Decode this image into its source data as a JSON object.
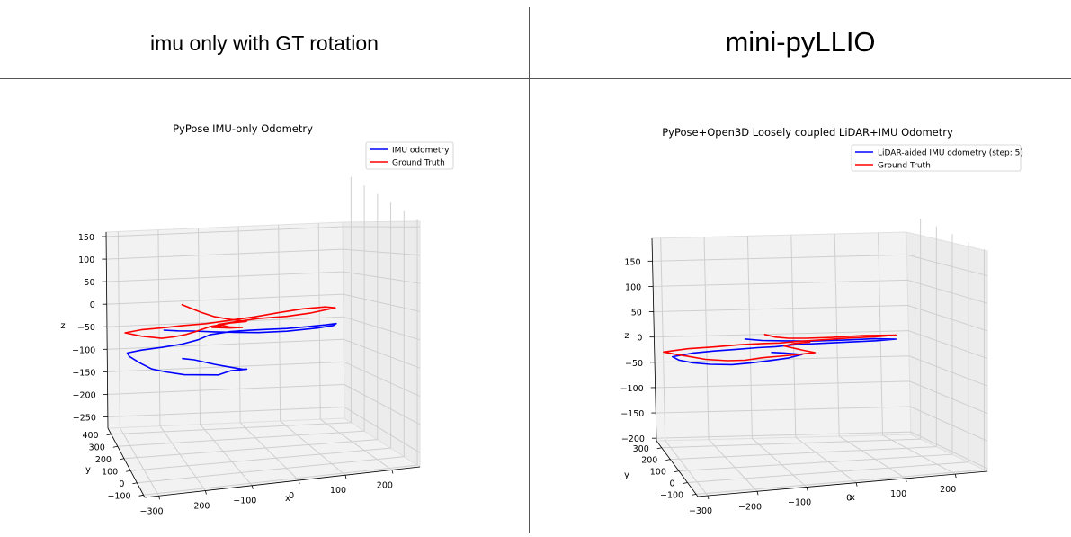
{
  "headers": {
    "left": "imu only with GT rotation",
    "right": "mini-pyLLIO"
  },
  "chart_data": [
    {
      "type": "line",
      "projection": "3d",
      "title": "PyPose IMU-only Odometry",
      "xlabel": "x",
      "ylabel": "y",
      "zlabel": "z",
      "x_ticks": [
        -300,
        -200,
        -100,
        0,
        100,
        200
      ],
      "y_ticks": [
        -100,
        0,
        100,
        200,
        300,
        400
      ],
      "z_ticks": [
        150,
        100,
        50,
        0,
        -50,
        -100,
        -150,
        -200,
        -250
      ],
      "xlim": [
        -330,
        260
      ],
      "ylim": [
        -120,
        450
      ],
      "zlim": [
        -275,
        160
      ],
      "legend_position": "top-right",
      "series": [
        {
          "name": "IMU odometry",
          "color": "#0000ff",
          "points": [
            [
              -195,
              420,
              -55
            ],
            [
              -160,
              420,
              -58
            ],
            [
              -120,
              420,
              -60
            ],
            [
              -70,
              420,
              -64
            ],
            [
              -20,
              420,
              -67
            ],
            [
              40,
              420,
              -70
            ],
            [
              110,
              420,
              -70
            ],
            [
              185,
              420,
              -66
            ],
            [
              225,
              420,
              -62
            ],
            [
              232,
              420,
              -58
            ],
            [
              205,
              420,
              -60
            ],
            [
              160,
              420,
              -62
            ],
            [
              110,
              420,
              -64
            ],
            [
              60,
              420,
              -64
            ],
            [
              20,
              420,
              -64
            ],
            [
              -30,
              420,
              -65
            ],
            [
              -80,
              420,
              -70
            ],
            [
              -110,
              420,
              -80
            ],
            [
              -150,
              420,
              -88
            ],
            [
              -200,
              420,
              -93
            ],
            [
              -250,
              420,
              -97
            ],
            [
              -285,
              420,
              -102
            ],
            [
              -280,
              420,
              -110
            ],
            [
              -255,
              420,
              -125
            ],
            [
              -225,
              420,
              -140
            ],
            [
              -190,
              420,
              -148
            ],
            [
              -145,
              420,
              -156
            ],
            [
              -100,
              420,
              -158
            ],
            [
              -60,
              420,
              -160
            ],
            [
              -30,
              420,
              -152
            ],
            [
              10,
              420,
              -150
            ],
            [
              0,
              420,
              -150
            ],
            [
              -40,
              420,
              -142
            ],
            [
              -70,
              420,
              -136
            ],
            [
              -95,
              420,
              -130
            ],
            [
              -120,
              420,
              -124
            ],
            [
              -150,
              420,
              -120
            ]
          ]
        },
        {
          "name": "Ground Truth",
          "color": "#ff0000",
          "points": [
            [
              -150,
              420,
              0
            ],
            [
              -130,
              420,
              -8
            ],
            [
              -100,
              420,
              -20
            ],
            [
              -70,
              420,
              -30
            ],
            [
              -30,
              420,
              -38
            ],
            [
              10,
              420,
              -44
            ],
            [
              -30,
              420,
              -46
            ],
            [
              -80,
              420,
              -52
            ],
            [
              -110,
              420,
              -60
            ],
            [
              -140,
              420,
              -67
            ],
            [
              -170,
              420,
              -71
            ],
            [
              -200,
              420,
              -73
            ],
            [
              -250,
              420,
              -66
            ],
            [
              -290,
              420,
              -57
            ],
            [
              -250,
              420,
              -52
            ],
            [
              -200,
              420,
              -50
            ],
            [
              -150,
              420,
              -47
            ],
            [
              -90,
              420,
              -45
            ],
            [
              -30,
              420,
              -40
            ],
            [
              30,
              420,
              -35
            ],
            [
              90,
              420,
              -28
            ],
            [
              150,
              420,
              -22
            ],
            [
              205,
              420,
              -20
            ],
            [
              230,
              420,
              -23
            ],
            [
              170,
              420,
              -32
            ],
            [
              110,
              420,
              -37
            ],
            [
              40,
              420,
              -39
            ],
            [
              -20,
              420,
              -44
            ],
            [
              -60,
              420,
              -48
            ],
            [
              -30,
              420,
              -55
            ],
            [
              0,
              420,
              -57
            ],
            [
              -30,
              420,
              -57
            ],
            [
              -75,
              420,
              -54
            ],
            [
              -50,
              420,
              -51
            ]
          ]
        }
      ]
    },
    {
      "type": "line",
      "projection": "3d",
      "title": "PyPose+Open3D Loosely coupled LiDAR+IMU Odometry",
      "xlabel": "x",
      "ylabel": "y",
      "zlabel": "z",
      "x_ticks": [
        -300,
        -200,
        -100,
        0,
        100,
        200
      ],
      "y_ticks": [
        -100,
        0,
        100,
        200,
        300
      ],
      "z_ticks": [
        150,
        100,
        50,
        0,
        -50,
        -100,
        -150,
        -200
      ],
      "xlim": [
        -320,
        265
      ],
      "ylim": [
        -120,
        360
      ],
      "zlim": [
        -205,
        195
      ],
      "legend_position": "top-right",
      "series": [
        {
          "name": "LiDAR-aided IMU odometry (step: 5)",
          "color": "#0000ff",
          "points": [
            [
              -120,
              330,
              -2
            ],
            [
              -80,
              330,
              -6
            ],
            [
              -30,
              330,
              -8
            ],
            [
              30,
              330,
              -10
            ],
            [
              100,
              330,
              -10
            ],
            [
              175,
              330,
              -9
            ],
            [
              225,
              330,
              -11
            ],
            [
              180,
              330,
              -13
            ],
            [
              120,
              330,
              -14
            ],
            [
              60,
              330,
              -15
            ],
            [
              0,
              330,
              -16
            ],
            [
              -50,
              330,
              -19
            ],
            [
              -90,
              330,
              -20
            ],
            [
              -140,
              330,
              -22
            ],
            [
              -190,
              330,
              -24
            ],
            [
              -240,
              330,
              -27
            ],
            [
              -285,
              330,
              -33
            ],
            [
              -270,
              330,
              -40
            ],
            [
              -240,
              330,
              -46
            ],
            [
              -200,
              330,
              -50
            ],
            [
              -150,
              330,
              -52
            ],
            [
              -110,
              330,
              -50
            ],
            [
              -60,
              330,
              -46
            ],
            [
              -20,
              330,
              -42
            ],
            [
              10,
              330,
              -36
            ],
            [
              -30,
              330,
              -32
            ],
            [
              -60,
              330,
              -30
            ]
          ]
        },
        {
          "name": "Ground Truth",
          "color": "#ff0000",
          "points": [
            [
              -75,
              330,
              6
            ],
            [
              -50,
              330,
              0
            ],
            [
              -20,
              330,
              -3
            ],
            [
              20,
              330,
              -4
            ],
            [
              80,
              330,
              -4
            ],
            [
              150,
              330,
              -2
            ],
            [
              225,
              330,
              -3
            ],
            [
              180,
              330,
              -5
            ],
            [
              120,
              330,
              -6
            ],
            [
              60,
              330,
              -8
            ],
            [
              0,
              330,
              -10
            ],
            [
              -40,
              330,
              -12
            ],
            [
              -80,
              330,
              -12
            ],
            [
              -130,
              330,
              -13
            ],
            [
              -190,
              330,
              -16
            ],
            [
              -250,
              330,
              -18
            ],
            [
              -305,
              330,
              -23
            ],
            [
              -280,
              330,
              -28
            ],
            [
              -250,
              330,
              -33
            ],
            [
              -210,
              330,
              -40
            ],
            [
              -160,
              330,
              -44
            ],
            [
              -120,
              330,
              -44
            ],
            [
              -80,
              330,
              -40
            ],
            [
              -40,
              330,
              -38
            ],
            [
              10,
              330,
              -35
            ],
            [
              40,
              330,
              -33
            ],
            [
              10,
              330,
              -27
            ],
            [
              -30,
              330,
              -18
            ],
            [
              -10,
              330,
              -14
            ],
            [
              30,
              330,
              -12
            ]
          ]
        }
      ]
    }
  ]
}
